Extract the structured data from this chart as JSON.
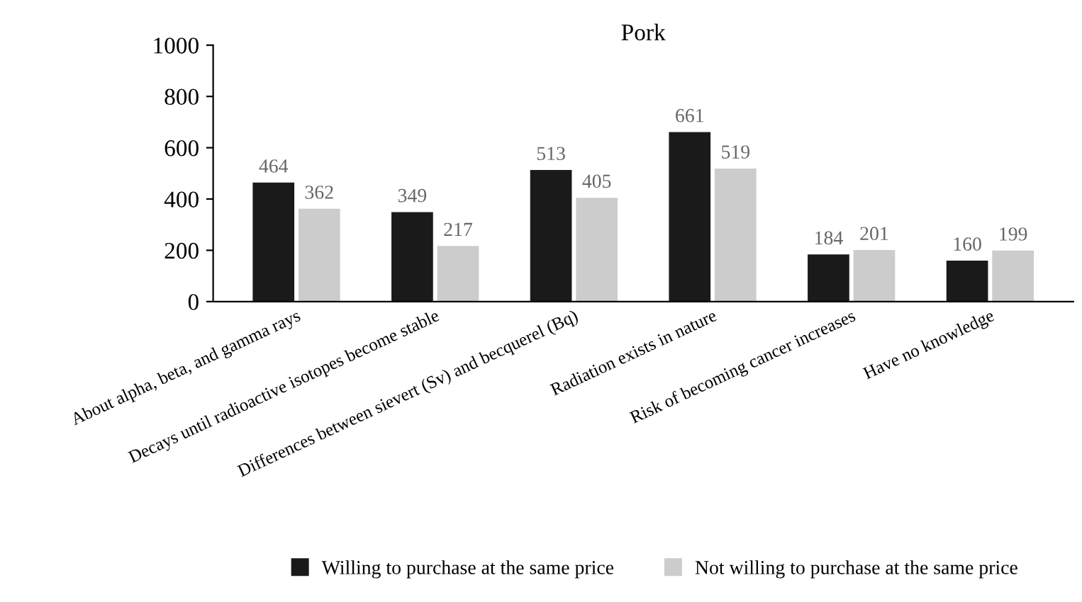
{
  "chart_data": {
    "type": "bar",
    "title": "Pork",
    "categories": [
      "About alpha, beta, and gamma rays",
      "Decays until radioactive isotopes become stable",
      "Differences between sievert (Sv) and becquerel (Bq)",
      "Radiation exists in nature",
      "Risk of becoming cancer increases",
      "Have no knowledge"
    ],
    "series": [
      {
        "name": "Willing to purchase at the same price",
        "color": "#1a1a1a",
        "values": [
          464,
          349,
          513,
          661,
          184,
          160
        ]
      },
      {
        "name": "Not willing to purchase at the same price",
        "color": "#cccccc",
        "values": [
          362,
          217,
          405,
          519,
          201,
          199
        ]
      }
    ],
    "ylim": [
      0,
      1000
    ],
    "yticks": [
      0,
      200,
      400,
      600,
      800,
      1000
    ],
    "data_labels": true,
    "grid": false,
    "legend": "bottom"
  }
}
